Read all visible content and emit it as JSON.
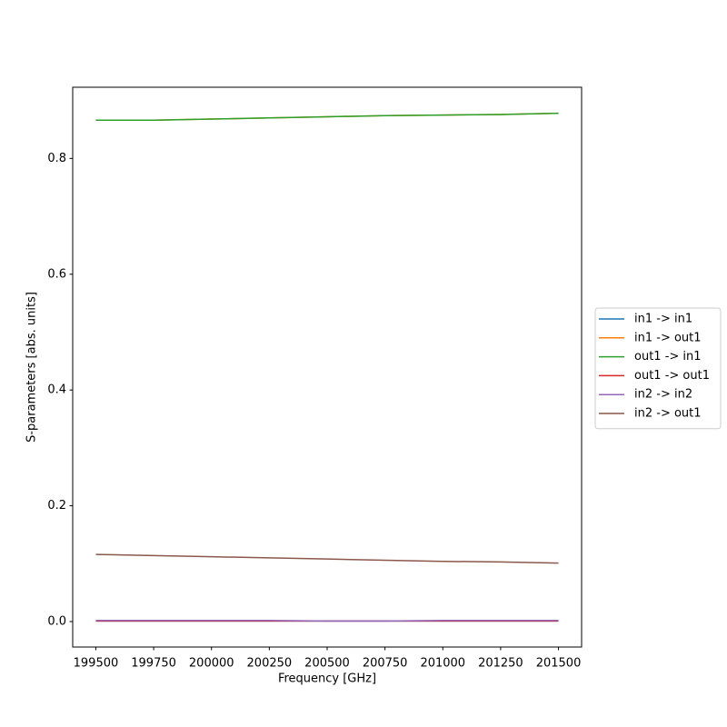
{
  "chart_data": {
    "type": "line",
    "x_label": "Frequency [GHz]",
    "y_label": "S-parameters [abs. units]",
    "x": [
      199500,
      199750,
      200000,
      200250,
      200500,
      200750,
      201000,
      201250,
      201500
    ],
    "series": [
      {
        "name": "in1 -> in1",
        "color": "#1f77b4",
        "values": [
          0.001,
          0.001,
          0.001,
          0.001,
          0.001,
          0.001,
          0.001,
          0.001,
          0.001
        ]
      },
      {
        "name": "in1 -> out1",
        "color": "#ff7f0e",
        "values": [
          0.866,
          0.866,
          0.868,
          0.87,
          0.872,
          0.874,
          0.875,
          0.876,
          0.878
        ]
      },
      {
        "name": "out1 -> in1",
        "color": "#2ca02c",
        "values": [
          0.866,
          0.866,
          0.868,
          0.87,
          0.872,
          0.874,
          0.875,
          0.876,
          0.878
        ]
      },
      {
        "name": "out1 -> out1",
        "color": "#d62728",
        "values": [
          0.001,
          0.001,
          0.001,
          0.001,
          0.001,
          0.001,
          0.001,
          0.001,
          0.001
        ]
      },
      {
        "name": "in2 -> in2",
        "color": "#9467bd",
        "values": [
          0.002,
          0.002,
          0.002,
          0.002,
          0.001,
          0.001,
          0.002,
          0.002,
          0.002
        ]
      },
      {
        "name": "in2 -> out1",
        "color": "#8c564b",
        "values": [
          0.116,
          0.114,
          0.112,
          0.11,
          0.108,
          0.106,
          0.104,
          0.103,
          0.101
        ]
      }
    ],
    "xlim": [
      199400,
      201600
    ],
    "xticks": [
      199500,
      199750,
      200000,
      200250,
      200500,
      200750,
      201000,
      201250,
      201500
    ],
    "ylim": [
      -0.044,
      0.923
    ],
    "yticks": [
      {
        "value": 0,
        "label": "0.0"
      },
      0.2,
      0.4,
      0.6,
      0.8
    ],
    "grid": false,
    "legend": "outside-right"
  }
}
